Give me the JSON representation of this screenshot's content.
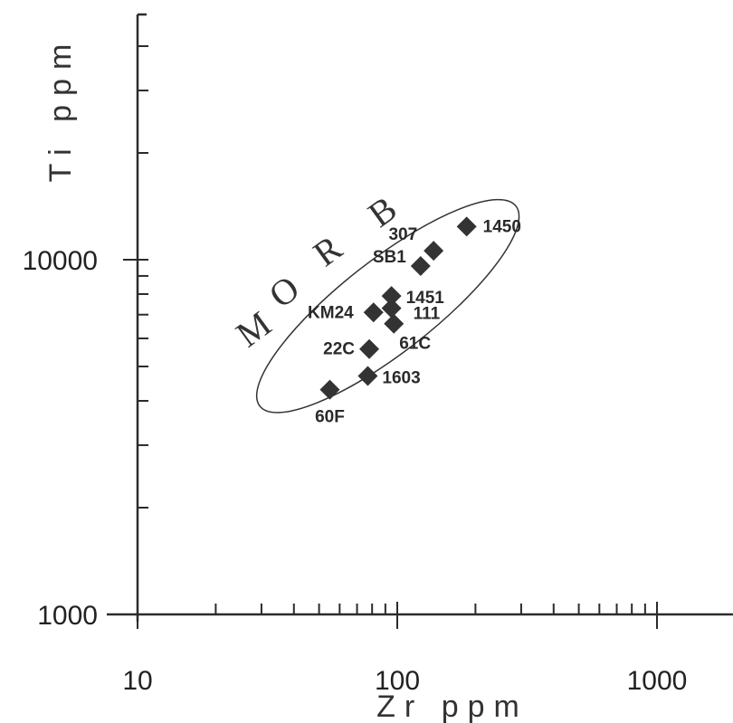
{
  "chart_data": {
    "type": "scatter",
    "xlabel": "Zr ppm",
    "ylabel": "Ti ppm",
    "xscale": "log",
    "yscale": "log",
    "xlim": [
      10,
      2000
    ],
    "ylim": [
      1000,
      70000
    ],
    "x_ticks": [
      10,
      100,
      1000
    ],
    "y_ticks": [
      1000,
      10000
    ],
    "x_tick_labels": [
      "10",
      "100",
      "1000"
    ],
    "y_tick_labels": [
      "1000",
      "10000"
    ],
    "grid": false,
    "legend": "none",
    "marker": "diamond",
    "marker_color": "#333333",
    "points": [
      {
        "label": "1450",
        "x": 185,
        "y": 12400
      },
      {
        "label": "307",
        "x": 138,
        "y": 10600
      },
      {
        "label": "SB1",
        "x": 123,
        "y": 9600
      },
      {
        "label": "1451",
        "x": 95,
        "y": 7900
      },
      {
        "label": "111",
        "x": 95,
        "y": 7300
      },
      {
        "label": "KM24",
        "x": 81,
        "y": 7100
      },
      {
        "label": "61C",
        "x": 97,
        "y": 6600
      },
      {
        "label": "22C",
        "x": 78,
        "y": 5600
      },
      {
        "label": "1603",
        "x": 77,
        "y": 4700
      },
      {
        "label": "60F",
        "x": 55,
        "y": 4300
      }
    ],
    "fields": [
      {
        "label": "MORB",
        "shape": "ellipse",
        "center": [
          92,
          7400
        ],
        "semi_axis_a_decades": 0.68,
        "semi_axis_b_decades": 0.155,
        "rotation_deg": 38
      }
    ]
  }
}
